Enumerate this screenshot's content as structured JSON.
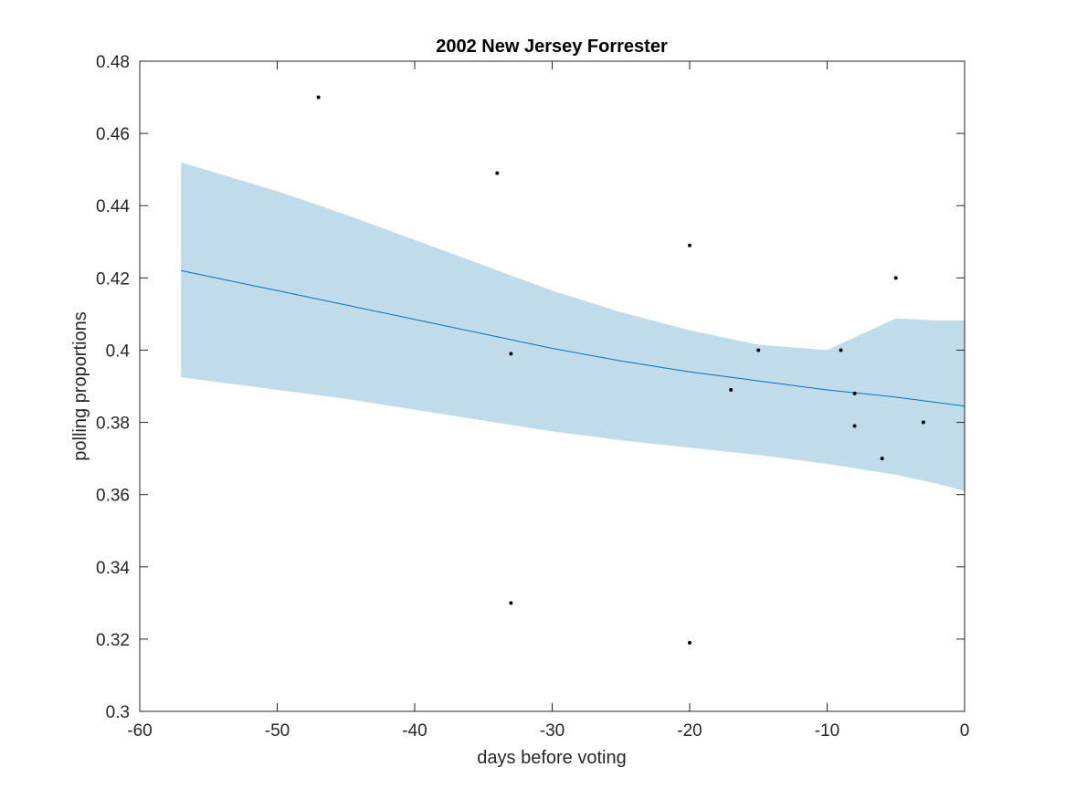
{
  "chart_data": {
    "type": "scatter",
    "title": "2002 New Jersey Forrester",
    "xlabel": "days before voting",
    "ylabel": "polling proportions",
    "xlim": [
      -60,
      0
    ],
    "ylim": [
      0.3,
      0.48
    ],
    "xticks": [
      -60,
      -50,
      -40,
      -30,
      -20,
      -10,
      0
    ],
    "xtick_labels": [
      "-60",
      "-50",
      "-40",
      "-30",
      "-20",
      "-10",
      "0"
    ],
    "yticks": [
      0.3,
      0.32,
      0.34,
      0.36,
      0.38,
      0.4,
      0.42,
      0.44,
      0.46,
      0.48
    ],
    "ytick_labels": [
      "0.3",
      "0.32",
      "0.34",
      "0.36",
      "0.38",
      "0.4",
      "0.42",
      "0.44",
      "0.46",
      "0.48"
    ],
    "grid": false,
    "colors": {
      "points": "#000000",
      "trend": "#0072BD",
      "band": "#c0dcea",
      "axes": "#262626"
    },
    "points": [
      {
        "x": -47,
        "y": 0.47
      },
      {
        "x": -34,
        "y": 0.449
      },
      {
        "x": -33,
        "y": 0.399
      },
      {
        "x": -33,
        "y": 0.33
      },
      {
        "x": -20,
        "y": 0.429
      },
      {
        "x": -20,
        "y": 0.319
      },
      {
        "x": -17,
        "y": 0.389
      },
      {
        "x": -15,
        "y": 0.4
      },
      {
        "x": -9,
        "y": 0.4
      },
      {
        "x": -8,
        "y": 0.388
      },
      {
        "x": -8,
        "y": 0.379
      },
      {
        "x": -6,
        "y": 0.37
      },
      {
        "x": -5,
        "y": 0.42
      },
      {
        "x": -3,
        "y": 0.38
      }
    ],
    "trend": {
      "x": [
        -57,
        -50,
        -45,
        -40,
        -35,
        -30,
        -25,
        -20,
        -15,
        -10,
        -5,
        0
      ],
      "y": [
        0.422,
        0.4165,
        0.4125,
        0.4085,
        0.4045,
        0.4005,
        0.397,
        0.394,
        0.3915,
        0.389,
        0.387,
        0.3845
      ]
    },
    "band": {
      "x": [
        -57,
        -50,
        -45,
        -40,
        -35,
        -30,
        -25,
        -20,
        -15,
        -10,
        -5,
        -2,
        0
      ],
      "upper": [
        0.452,
        0.444,
        0.4375,
        0.4305,
        0.4235,
        0.4165,
        0.4105,
        0.4055,
        0.4015,
        0.4,
        0.4088,
        0.4082,
        0.4082
      ],
      "lower": [
        0.3925,
        0.389,
        0.3865,
        0.3835,
        0.3805,
        0.3775,
        0.375,
        0.373,
        0.371,
        0.3685,
        0.3655,
        0.363,
        0.361
      ]
    }
  }
}
